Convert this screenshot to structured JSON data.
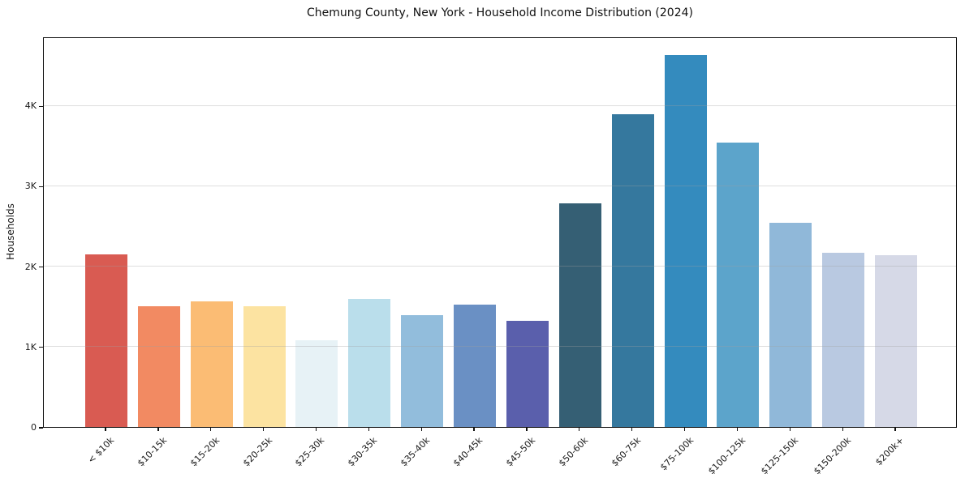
{
  "figure": {
    "title": "Chemung County, New York - Household Income Distribution (2024)"
  },
  "chart_data": {
    "type": "bar",
    "title": "Chemung County, New York - Household Income Distribution (2024)",
    "xlabel": "",
    "ylabel": "Households",
    "categories": [
      "< $10k",
      "$10-15k",
      "$15-20k",
      "$20-25k",
      "$25-30k",
      "$30-35k",
      "$35-40k",
      "$40-45k",
      "$45-50k",
      "$50-60k",
      "$60-75k",
      "$75-100k",
      "$100-125k",
      "$125-150k",
      "$150-200k",
      "$200k+"
    ],
    "values": [
      2145,
      1505,
      1565,
      1505,
      1080,
      1595,
      1390,
      1525,
      1320,
      2780,
      3890,
      4630,
      3535,
      2545,
      2170,
      2140
    ],
    "bar_colors": [
      "#D95B52",
      "#F28A62",
      "#FBBC74",
      "#FCE3A1",
      "#E7F2F6",
      "#BADEEB",
      "#92BDDC",
      "#6A90C4",
      "#5A5FAC",
      "#355F74",
      "#35789E",
      "#348BBE",
      "#5CA4CB",
      "#90B8D9",
      "#B9C9E1",
      "#D6D9E7"
    ],
    "ylim": [
      0,
      4860
    ],
    "yticks": [
      {
        "value": 0,
        "label": "0"
      },
      {
        "value": 1000,
        "label": "1K"
      },
      {
        "value": 2000,
        "label": "2K"
      },
      {
        "value": 3000,
        "label": "3K"
      },
      {
        "value": 4000,
        "label": "4K"
      }
    ],
    "grid": "horizontal",
    "gridline_color": "#e3e3e3",
    "spine_color": "#111111",
    "legend": "none"
  }
}
